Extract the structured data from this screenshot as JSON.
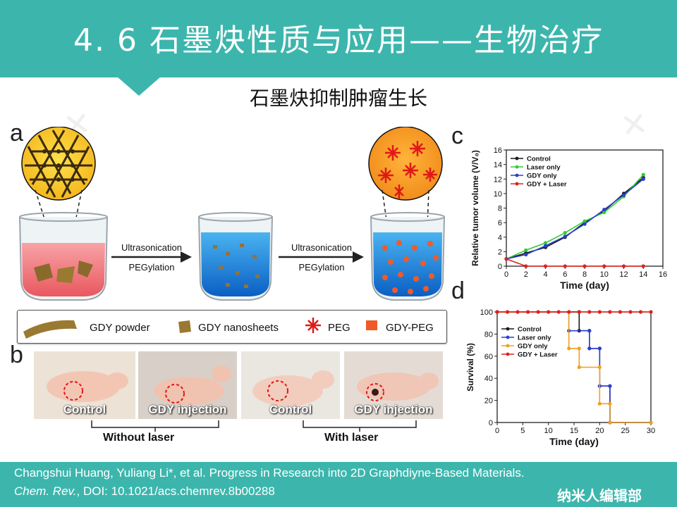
{
  "slide": {
    "title": "4. 6  石墨炔性质与应用——生物治疗",
    "subtitle": "石墨炔抑制肿瘤生长"
  },
  "colors": {
    "header": "#3cb6ad"
  },
  "panel_a": {
    "letter": "a",
    "step1": {
      "top": "Ultrasonication",
      "bottom": "PEGylation"
    },
    "step2": {
      "top": "Ultrasonication",
      "bottom": "PEGylation"
    },
    "legend": [
      "GDY powder",
      "GDY nanosheets",
      "PEG",
      "GDY-PEG"
    ]
  },
  "panel_b": {
    "letter": "b",
    "photos": [
      "Control",
      "GDY injection",
      "Control",
      "GDY injection"
    ],
    "groups": [
      "Without laser",
      "With laser"
    ]
  },
  "chart_data": [
    {
      "panel": "c",
      "type": "line",
      "xlabel": "Time (day)",
      "ylabel": "Relative tumor volume (V/V₀)",
      "xlim": [
        0,
        16
      ],
      "ylim": [
        0,
        16
      ],
      "xticks": [
        0,
        2,
        4,
        6,
        8,
        10,
        12,
        14,
        16
      ],
      "yticks": [
        0,
        2,
        4,
        6,
        8,
        10,
        12,
        14,
        16
      ],
      "legend_position": "top-left",
      "series": [
        {
          "name": "Control",
          "color": "#1a1a1a",
          "x": [
            0,
            2,
            4,
            6,
            8,
            10,
            12,
            14
          ],
          "y": [
            1,
            1.8,
            2.6,
            4.0,
            6.0,
            7.6,
            10.0,
            12.2
          ]
        },
        {
          "name": "Laser only",
          "color": "#33cc33",
          "x": [
            0,
            2,
            4,
            6,
            8,
            10,
            12,
            14
          ],
          "y": [
            1,
            2.2,
            3.2,
            4.6,
            6.2,
            7.4,
            9.6,
            12.6
          ]
        },
        {
          "name": "GDY only",
          "color": "#2a3fd0",
          "x": [
            0,
            2,
            4,
            6,
            8,
            10,
            12,
            14
          ],
          "y": [
            1,
            1.6,
            2.8,
            4.1,
            5.8,
            7.8,
            9.8,
            12.0
          ]
        },
        {
          "name": "GDY + Laser",
          "color": "#e02020",
          "x": [
            0,
            2,
            4,
            6,
            8,
            10,
            12,
            14
          ],
          "y": [
            1,
            0,
            0,
            0,
            0,
            0,
            0,
            0
          ]
        }
      ]
    },
    {
      "panel": "d",
      "type": "line",
      "xlabel": "Time (day)",
      "ylabel": "Survival (%)",
      "xlim": [
        0,
        30
      ],
      "ylim": [
        0,
        100
      ],
      "xticks": [
        0,
        5,
        10,
        15,
        20,
        25,
        30
      ],
      "yticks": [
        0,
        20,
        40,
        60,
        80,
        100
      ],
      "legend_position": "left",
      "series": [
        {
          "name": "Control",
          "color": "#1a1a1a",
          "x": [
            0,
            16,
            16,
            18,
            18,
            20,
            20,
            22,
            22,
            30
          ],
          "y": [
            100,
            100,
            83,
            83,
            67,
            67,
            33,
            33,
            0,
            0
          ]
        },
        {
          "name": "Laser only",
          "color": "#2a3fd0",
          "x": [
            0,
            14,
            14,
            18,
            18,
            20,
            20,
            22,
            22,
            30
          ],
          "y": [
            100,
            100,
            83,
            83,
            67,
            67,
            33,
            33,
            0,
            0
          ]
        },
        {
          "name": "GDY only",
          "color": "#f0a020",
          "x": [
            0,
            14,
            14,
            16,
            16,
            20,
            20,
            22,
            22,
            30
          ],
          "y": [
            100,
            100,
            67,
            67,
            50,
            50,
            17,
            17,
            0,
            0
          ]
        },
        {
          "name": "GDY + Laser",
          "color": "#e02020",
          "x": [
            0,
            2,
            4,
            6,
            8,
            10,
            12,
            14,
            16,
            18,
            20,
            22,
            24,
            26,
            28,
            30
          ],
          "y": [
            100,
            100,
            100,
            100,
            100,
            100,
            100,
            100,
            100,
            100,
            100,
            100,
            100,
            100,
            100,
            100
          ]
        }
      ]
    }
  ],
  "footer": {
    "line1": "Changshui Huang, Yuliang Li*, et al. Progress in Research into 2D Graphdiyne-Based Materials.",
    "journal": "Chem. Rev.",
    "doi": ", DOI: 10.1021/acs.chemrev.8b00288",
    "logo": "纳米人编辑部"
  }
}
